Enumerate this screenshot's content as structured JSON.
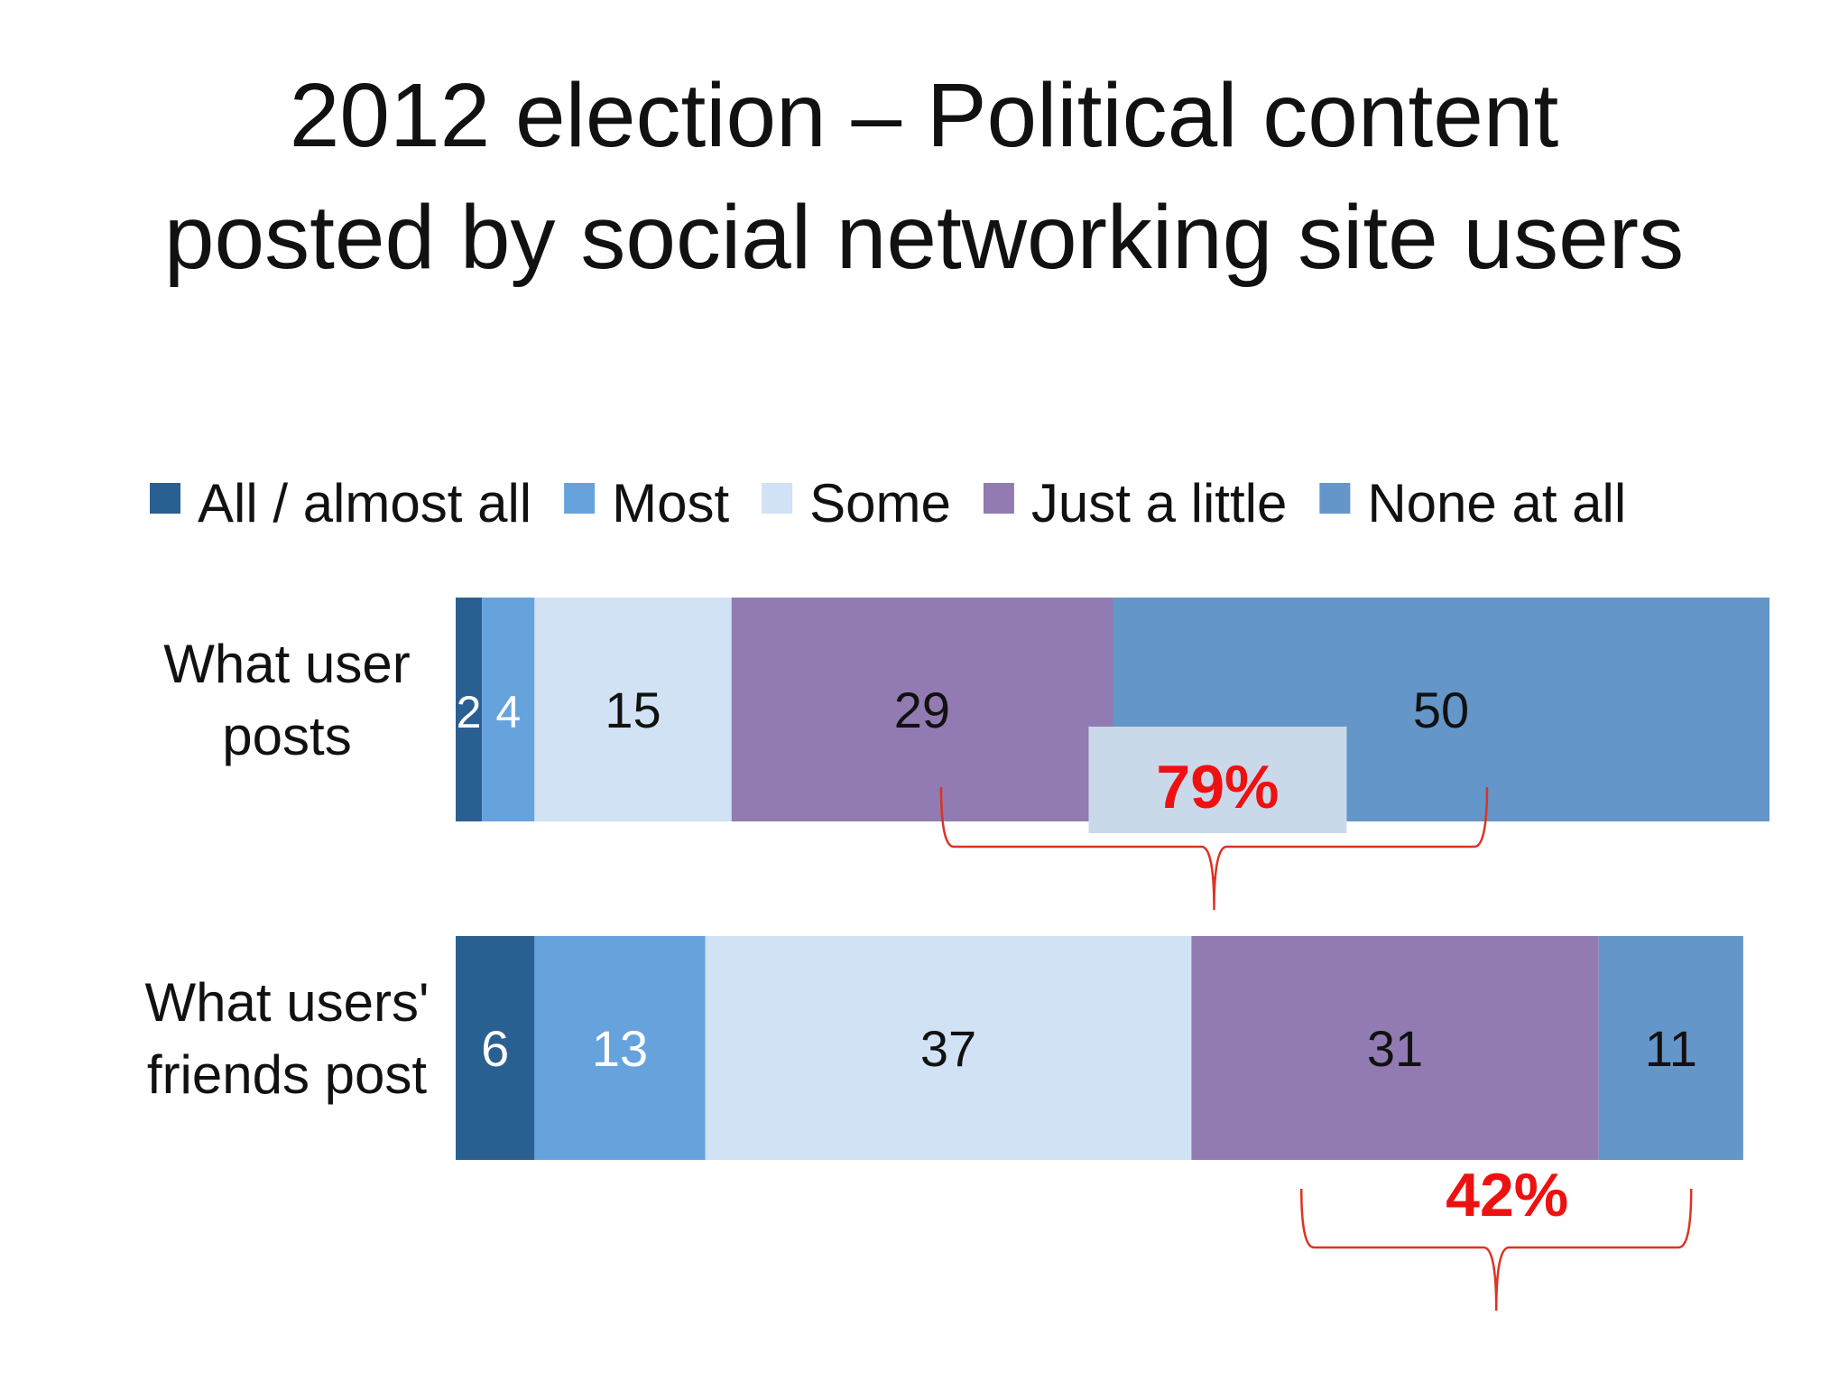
{
  "slide": {
    "title_line1": "2012 election – Political content",
    "title_line2": "posted by social networking site users"
  },
  "chart_data": {
    "type": "bar",
    "orientation": "horizontal",
    "stacked": true,
    "title": "2012 election – Political content posted by social networking site users",
    "categories": [
      "What user posts",
      "What users' friends post"
    ],
    "category_label_lines": [
      [
        "What user",
        "posts"
      ],
      [
        "What users'",
        "friends post"
      ]
    ],
    "series": [
      {
        "name": "All / almost all",
        "color": "#2a5f91",
        "label_color": "#ffffff",
        "values": [
          2,
          6
        ]
      },
      {
        "name": "Most",
        "color": "#66a3dd",
        "label_color": "#ffffff",
        "values": [
          4,
          13
        ]
      },
      {
        "name": "Some",
        "color": "#d0e2f4",
        "label_color": "#111111",
        "values": [
          15,
          37
        ]
      },
      {
        "name": "Just a little",
        "color": "#927bb2",
        "label_color": "#111111",
        "values": [
          29,
          31
        ]
      },
      {
        "name": "None at all",
        "color": "#6496c9",
        "label_color": "#111111",
        "values": [
          50,
          11
        ]
      }
    ],
    "legend_position": "top",
    "grid": false,
    "annotations": [
      {
        "text": "79%",
        "category": "What user posts",
        "color": "#ee1111",
        "boxed": true,
        "box_color": "#c9d9ea"
      },
      {
        "text": "42%",
        "category": "What users' friends post",
        "color": "#ee1111",
        "boxed": false
      }
    ]
  }
}
